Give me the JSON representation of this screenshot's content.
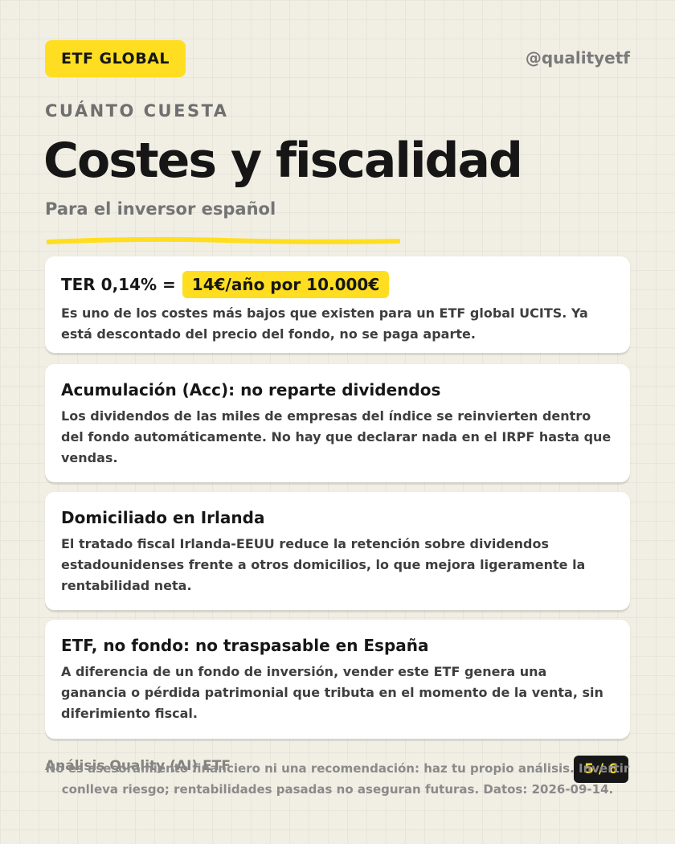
{
  "header": {
    "tag": "ETF GLOBAL",
    "handle": "@qualityetf"
  },
  "intro": {
    "eyebrow": "CUÁNTO CUESTA",
    "title": "Costes y fiscalidad",
    "subtitle": "Para el inversor español"
  },
  "cards": [
    {
      "title": "TER 0,14% =",
      "highlight": "14€/año por 10.000€",
      "text": "Es uno de los costes más bajos que existen para un ETF global UCITS. Ya está descontado del precio del fondo, no se paga aparte."
    },
    {
      "title": "Acumulación (Acc): no reparte dividendos",
      "text": "Los dividendos de las miles de empresas del índice se reinvierten dentro del fondo automáticamente. No hay que declarar nada en el IRPF hasta que vendas."
    },
    {
      "title": "Domiciliado en Irlanda",
      "text": "El tratado fiscal Irlanda-EEUU reduce la retención sobre dividendos estadounidenses frente a otros domicilios, lo que mejora ligeramente la rentabilidad neta."
    },
    {
      "title": "ETF, no fondo: no traspasable en España",
      "text": "A diferencia de un fondo de inversión, vender este ETF genera una ganancia o pérdida patrimonial que tributa en el momento de la venta, sin diferimiento fiscal."
    }
  ],
  "footer": {
    "brand": "Análisis Quality (AI) ETF",
    "page": "5 / 6",
    "disclaimer": "No es asesoramiento financiero ni una recomendación: haz tu propio análisis. Invertir conlleva riesgo; rentabilidades pasadas no aseguran futuras. Datos: 2026-09-14."
  },
  "colors": {
    "accent": "#ffde21",
    "background": "#f1eee4",
    "text": "#161616"
  }
}
